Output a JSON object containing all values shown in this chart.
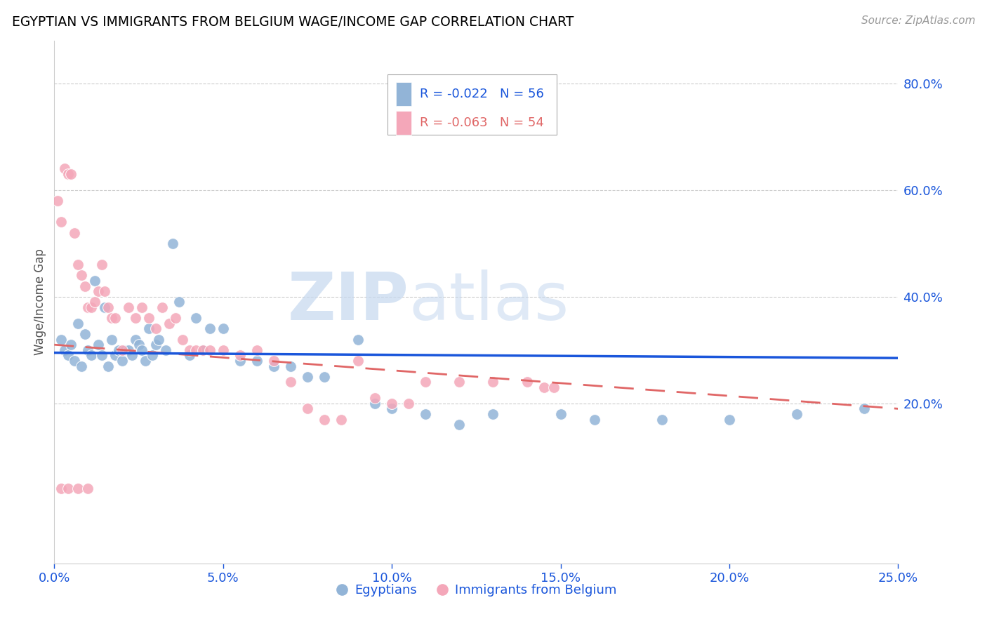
{
  "title": "EGYPTIAN VS IMMIGRANTS FROM BELGIUM WAGE/INCOME GAP CORRELATION CHART",
  "source": "Source: ZipAtlas.com",
  "ylabel": "Wage/Income Gap",
  "legend_label1": "Egyptians",
  "legend_label2": "Immigrants from Belgium",
  "r1": -0.022,
  "n1": 56,
  "r2": -0.063,
  "n2": 54,
  "color1": "#92b4d7",
  "color2": "#f4a7b9",
  "line_color1": "#1a56db",
  "line_color2": "#e06666",
  "xlim": [
    0.0,
    0.25
  ],
  "ylim": [
    -0.1,
    0.88
  ],
  "right_yticks": [
    0.2,
    0.4,
    0.6,
    0.8
  ],
  "background_color": "#ffffff",
  "grid_color": "#cccccc",
  "title_color": "#000000",
  "watermark_text": "ZIPatlas",
  "egyptians_x": [
    0.002,
    0.003,
    0.004,
    0.005,
    0.006,
    0.007,
    0.008,
    0.009,
    0.01,
    0.011,
    0.012,
    0.013,
    0.014,
    0.015,
    0.016,
    0.017,
    0.018,
    0.019,
    0.02,
    0.021,
    0.022,
    0.023,
    0.024,
    0.025,
    0.026,
    0.027,
    0.028,
    0.029,
    0.03,
    0.031,
    0.033,
    0.035,
    0.037,
    0.04,
    0.042,
    0.044,
    0.046,
    0.05,
    0.055,
    0.06,
    0.065,
    0.07,
    0.075,
    0.08,
    0.09,
    0.095,
    0.1,
    0.11,
    0.12,
    0.13,
    0.15,
    0.16,
    0.18,
    0.2,
    0.22,
    0.24
  ],
  "egyptians_y": [
    0.32,
    0.3,
    0.29,
    0.31,
    0.28,
    0.35,
    0.27,
    0.33,
    0.3,
    0.29,
    0.43,
    0.31,
    0.29,
    0.38,
    0.27,
    0.32,
    0.29,
    0.3,
    0.28,
    0.3,
    0.3,
    0.29,
    0.32,
    0.31,
    0.3,
    0.28,
    0.34,
    0.29,
    0.31,
    0.32,
    0.3,
    0.5,
    0.39,
    0.29,
    0.36,
    0.3,
    0.34,
    0.34,
    0.28,
    0.28,
    0.27,
    0.27,
    0.25,
    0.25,
    0.32,
    0.2,
    0.19,
    0.18,
    0.16,
    0.18,
    0.18,
    0.17,
    0.17,
    0.17,
    0.18,
    0.19
  ],
  "belgium_x": [
    0.001,
    0.002,
    0.003,
    0.004,
    0.005,
    0.006,
    0.007,
    0.008,
    0.009,
    0.01,
    0.011,
    0.012,
    0.013,
    0.014,
    0.015,
    0.016,
    0.017,
    0.018,
    0.02,
    0.022,
    0.024,
    0.026,
    0.028,
    0.03,
    0.032,
    0.034,
    0.036,
    0.038,
    0.04,
    0.042,
    0.044,
    0.046,
    0.05,
    0.055,
    0.06,
    0.065,
    0.07,
    0.075,
    0.08,
    0.085,
    0.09,
    0.095,
    0.1,
    0.105,
    0.11,
    0.12,
    0.13,
    0.14,
    0.145,
    0.148,
    0.002,
    0.004,
    0.007,
    0.01
  ],
  "belgium_y": [
    0.58,
    0.54,
    0.64,
    0.63,
    0.63,
    0.52,
    0.46,
    0.44,
    0.42,
    0.38,
    0.38,
    0.39,
    0.41,
    0.46,
    0.41,
    0.38,
    0.36,
    0.36,
    0.3,
    0.38,
    0.36,
    0.38,
    0.36,
    0.34,
    0.38,
    0.35,
    0.36,
    0.32,
    0.3,
    0.3,
    0.3,
    0.3,
    0.3,
    0.29,
    0.3,
    0.28,
    0.24,
    0.19,
    0.17,
    0.17,
    0.28,
    0.21,
    0.2,
    0.2,
    0.24,
    0.24,
    0.24,
    0.24,
    0.23,
    0.23,
    0.04,
    0.04,
    0.04,
    0.04
  ],
  "trend1_x0": 0.0,
  "trend1_y0": 0.295,
  "trend1_x1": 0.25,
  "trend1_y1": 0.285,
  "trend2_x0": 0.0,
  "trend2_y0": 0.31,
  "trend2_x1": 0.25,
  "trend2_y1": 0.19
}
